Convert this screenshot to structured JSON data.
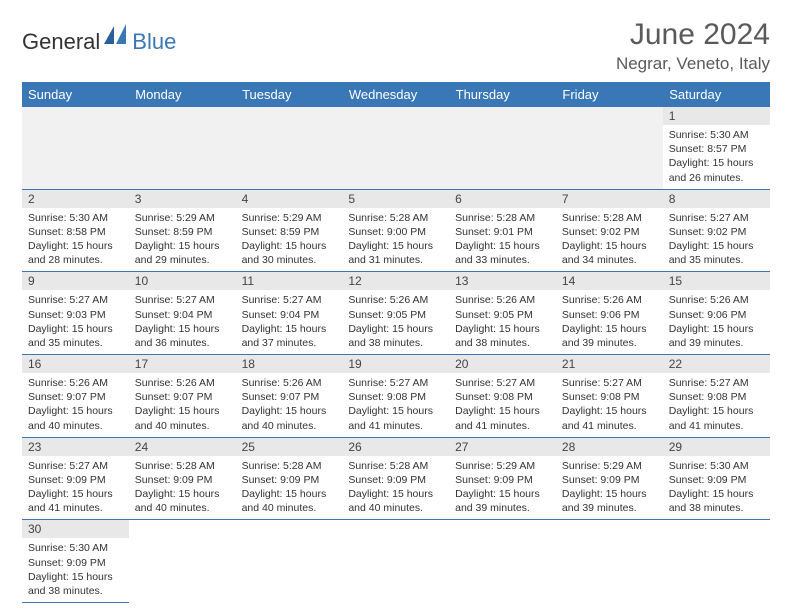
{
  "logo": {
    "part1": "General",
    "part2": "Blue"
  },
  "title": "June 2024",
  "location": "Negrar, Veneto, Italy",
  "colors": {
    "header_bg": "#3a77b7",
    "header_text": "#ffffff",
    "daynum_bg": "#e8e8e8",
    "border": "#3a77b7",
    "logo_accent": "#3a77b7"
  },
  "day_headers": [
    "Sunday",
    "Monday",
    "Tuesday",
    "Wednesday",
    "Thursday",
    "Friday",
    "Saturday"
  ],
  "weeks": [
    [
      null,
      null,
      null,
      null,
      null,
      null,
      {
        "n": "1",
        "sunrise": "5:30 AM",
        "sunset": "8:57 PM",
        "daylight": "15 hours and 26 minutes."
      }
    ],
    [
      {
        "n": "2",
        "sunrise": "5:30 AM",
        "sunset": "8:58 PM",
        "daylight": "15 hours and 28 minutes."
      },
      {
        "n": "3",
        "sunrise": "5:29 AM",
        "sunset": "8:59 PM",
        "daylight": "15 hours and 29 minutes."
      },
      {
        "n": "4",
        "sunrise": "5:29 AM",
        "sunset": "8:59 PM",
        "daylight": "15 hours and 30 minutes."
      },
      {
        "n": "5",
        "sunrise": "5:28 AM",
        "sunset": "9:00 PM",
        "daylight": "15 hours and 31 minutes."
      },
      {
        "n": "6",
        "sunrise": "5:28 AM",
        "sunset": "9:01 PM",
        "daylight": "15 hours and 33 minutes."
      },
      {
        "n": "7",
        "sunrise": "5:28 AM",
        "sunset": "9:02 PM",
        "daylight": "15 hours and 34 minutes."
      },
      {
        "n": "8",
        "sunrise": "5:27 AM",
        "sunset": "9:02 PM",
        "daylight": "15 hours and 35 minutes."
      }
    ],
    [
      {
        "n": "9",
        "sunrise": "5:27 AM",
        "sunset": "9:03 PM",
        "daylight": "15 hours and 35 minutes."
      },
      {
        "n": "10",
        "sunrise": "5:27 AM",
        "sunset": "9:04 PM",
        "daylight": "15 hours and 36 minutes."
      },
      {
        "n": "11",
        "sunrise": "5:27 AM",
        "sunset": "9:04 PM",
        "daylight": "15 hours and 37 minutes."
      },
      {
        "n": "12",
        "sunrise": "5:26 AM",
        "sunset": "9:05 PM",
        "daylight": "15 hours and 38 minutes."
      },
      {
        "n": "13",
        "sunrise": "5:26 AM",
        "sunset": "9:05 PM",
        "daylight": "15 hours and 38 minutes."
      },
      {
        "n": "14",
        "sunrise": "5:26 AM",
        "sunset": "9:06 PM",
        "daylight": "15 hours and 39 minutes."
      },
      {
        "n": "15",
        "sunrise": "5:26 AM",
        "sunset": "9:06 PM",
        "daylight": "15 hours and 39 minutes."
      }
    ],
    [
      {
        "n": "16",
        "sunrise": "5:26 AM",
        "sunset": "9:07 PM",
        "daylight": "15 hours and 40 minutes."
      },
      {
        "n": "17",
        "sunrise": "5:26 AM",
        "sunset": "9:07 PM",
        "daylight": "15 hours and 40 minutes."
      },
      {
        "n": "18",
        "sunrise": "5:26 AM",
        "sunset": "9:07 PM",
        "daylight": "15 hours and 40 minutes."
      },
      {
        "n": "19",
        "sunrise": "5:27 AM",
        "sunset": "9:08 PM",
        "daylight": "15 hours and 41 minutes."
      },
      {
        "n": "20",
        "sunrise": "5:27 AM",
        "sunset": "9:08 PM",
        "daylight": "15 hours and 41 minutes."
      },
      {
        "n": "21",
        "sunrise": "5:27 AM",
        "sunset": "9:08 PM",
        "daylight": "15 hours and 41 minutes."
      },
      {
        "n": "22",
        "sunrise": "5:27 AM",
        "sunset": "9:08 PM",
        "daylight": "15 hours and 41 minutes."
      }
    ],
    [
      {
        "n": "23",
        "sunrise": "5:27 AM",
        "sunset": "9:09 PM",
        "daylight": "15 hours and 41 minutes."
      },
      {
        "n": "24",
        "sunrise": "5:28 AM",
        "sunset": "9:09 PM",
        "daylight": "15 hours and 40 minutes."
      },
      {
        "n": "25",
        "sunrise": "5:28 AM",
        "sunset": "9:09 PM",
        "daylight": "15 hours and 40 minutes."
      },
      {
        "n": "26",
        "sunrise": "5:28 AM",
        "sunset": "9:09 PM",
        "daylight": "15 hours and 40 minutes."
      },
      {
        "n": "27",
        "sunrise": "5:29 AM",
        "sunset": "9:09 PM",
        "daylight": "15 hours and 39 minutes."
      },
      {
        "n": "28",
        "sunrise": "5:29 AM",
        "sunset": "9:09 PM",
        "daylight": "15 hours and 39 minutes."
      },
      {
        "n": "29",
        "sunrise": "5:30 AM",
        "sunset": "9:09 PM",
        "daylight": "15 hours and 38 minutes."
      }
    ],
    [
      {
        "n": "30",
        "sunrise": "5:30 AM",
        "sunset": "9:09 PM",
        "daylight": "15 hours and 38 minutes."
      },
      null,
      null,
      null,
      null,
      null,
      null
    ]
  ],
  "labels": {
    "sunrise": "Sunrise:",
    "sunset": "Sunset:",
    "daylight": "Daylight:"
  }
}
